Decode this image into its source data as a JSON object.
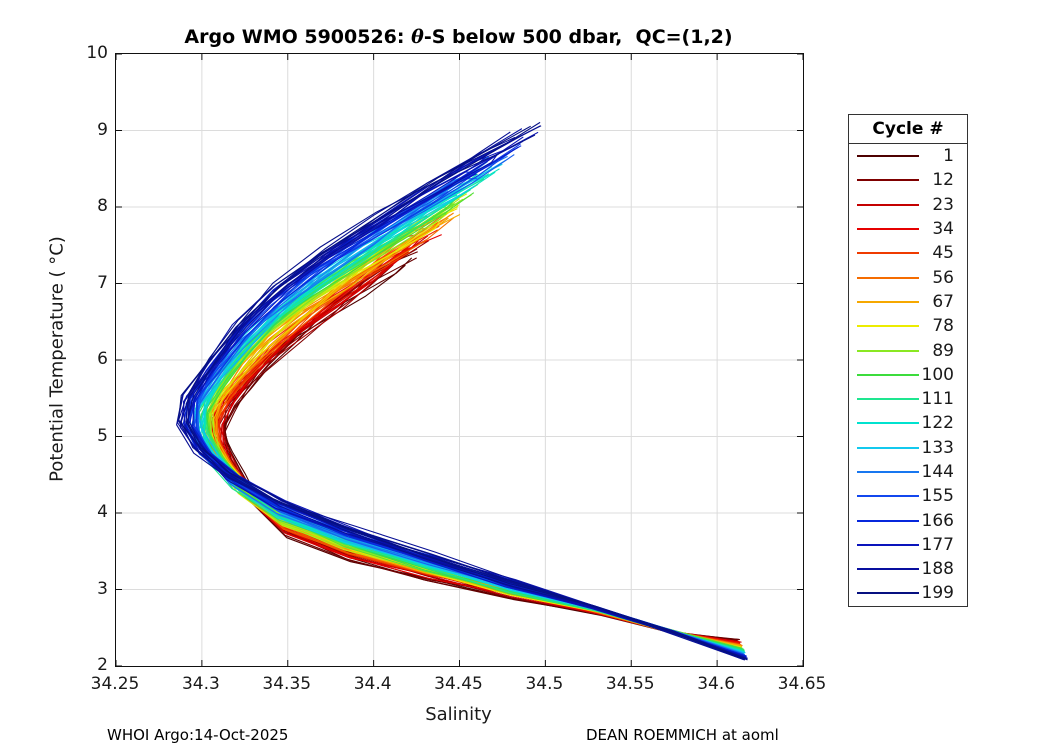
{
  "title": {
    "prefix": "Argo WMO 5900526: ",
    "theta": "θ",
    "suffix": "-S below 500 dbar,  QC=(1,2)"
  },
  "axes": {
    "xlabel": "Salinity",
    "ylabel": "Potential Temperature ( °C)",
    "xtick_labels": [
      "34.25",
      "34.3",
      "34.35",
      "34.4",
      "34.45",
      "34.5",
      "34.55",
      "34.6",
      "34.65"
    ],
    "ytick_labels": [
      "2",
      "3",
      "4",
      "5",
      "6",
      "7",
      "8",
      "9",
      "10"
    ]
  },
  "legend": {
    "title": "Cycle #",
    "entries": [
      {
        "label": "1",
        "color": "#4e0000"
      },
      {
        "label": "12",
        "color": "#7f0000"
      },
      {
        "label": "23",
        "color": "#c40000"
      },
      {
        "label": "34",
        "color": "#e60000"
      },
      {
        "label": "45",
        "color": "#ef3b00"
      },
      {
        "label": "56",
        "color": "#f56c00"
      },
      {
        "label": "67",
        "color": "#f6a800"
      },
      {
        "label": "78",
        "color": "#ecec00"
      },
      {
        "label": "89",
        "color": "#8ae822"
      },
      {
        "label": "100",
        "color": "#3cdc3c"
      },
      {
        "label": "111",
        "color": "#1ee690"
      },
      {
        "label": "122",
        "color": "#00e2cf"
      },
      {
        "label": "133",
        "color": "#13c9ee"
      },
      {
        "label": "144",
        "color": "#1877f0"
      },
      {
        "label": "155",
        "color": "#1347ee"
      },
      {
        "label": "166",
        "color": "#0627dc"
      },
      {
        "label": "177",
        "color": "#0a14bc"
      },
      {
        "label": "188",
        "color": "#080f9e"
      },
      {
        "label": "199",
        "color": "#061080"
      }
    ]
  },
  "footer": {
    "left": "WHOI Argo:14-Oct-2025",
    "right": "DEAN ROEMMICH at aoml"
  },
  "chart_data": {
    "type": "line",
    "title": "Argo WMO 5900526: θ-S below 500 dbar, QC=(1,2)",
    "xlabel": "Salinity",
    "ylabel": "Potential Temperature (°C)",
    "xlim": [
      34.25,
      34.65
    ],
    "ylim": [
      2,
      10
    ],
    "grid": true,
    "legend_position": "outside-right",
    "legend_title": "Cycle #",
    "cycles_shown_in_legend": [
      1,
      12,
      23,
      34,
      45,
      56,
      67,
      78,
      89,
      100,
      111,
      122,
      133,
      144,
      155,
      166,
      177,
      188,
      199
    ],
    "colormap": "jet-reversed (cycle 1 = dark red, cycle 199 = navy)",
    "series_keyframes": {
      "note": "~199 overlapping profile curves; profiles for intermediate cycles lie between these two keyframe profiles, colored by cycle number",
      "cycle_1": {
        "S": [
          34.423,
          34.408,
          34.392,
          34.374,
          34.356,
          34.339,
          34.326,
          34.316,
          34.311,
          34.314,
          34.321,
          34.331,
          34.352,
          34.388,
          34.432,
          34.482,
          34.533,
          34.578,
          34.612
        ],
        "theta": [
          7.42,
          7.18,
          6.9,
          6.58,
          6.25,
          5.92,
          5.62,
          5.36,
          5.1,
          4.85,
          4.55,
          4.18,
          3.72,
          3.4,
          3.15,
          2.92,
          2.68,
          2.42,
          2.34
        ]
      },
      "cycle_199": {
        "S": [
          34.5,
          34.468,
          34.437,
          34.404,
          34.372,
          34.345,
          34.322,
          34.305,
          34.291,
          34.288,
          34.297,
          34.315,
          34.345,
          34.385,
          34.432,
          34.48,
          34.528,
          34.573,
          34.617
        ],
        "theta": [
          9.15,
          8.75,
          8.35,
          7.9,
          7.45,
          7.0,
          6.5,
          6.0,
          5.55,
          5.2,
          4.85,
          4.5,
          4.15,
          3.8,
          3.45,
          3.1,
          2.78,
          2.45,
          2.08
        ]
      }
    },
    "render_hints": {
      "n_curves": 110,
      "grid_color": "#dcdcdc",
      "line_width": 1.1
    }
  }
}
